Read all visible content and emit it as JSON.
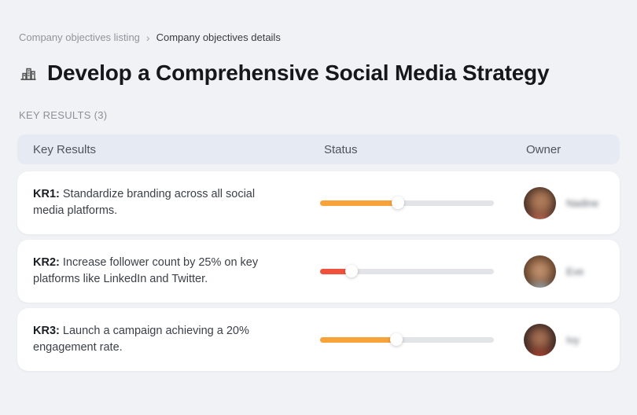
{
  "breadcrumb": {
    "separator": "›",
    "items": [
      {
        "label": "Company objectives listing"
      },
      {
        "label": "Company objectives details"
      }
    ]
  },
  "page": {
    "title": "Develop a Comprehensive Social Media Strategy",
    "title_icon": "building-skyline-icon",
    "section_label": "KEY RESULTS (3)"
  },
  "table": {
    "headers": {
      "key_results": "Key Results",
      "status": "Status",
      "owner": "Owner"
    },
    "rows": [
      {
        "kr_label": "KR1:",
        "kr_text": "Standardize branding across all social media platforms.",
        "progress_percent": 45,
        "progress_color": "#F8A33A",
        "owner": "Nadine"
      },
      {
        "kr_label": "KR2:",
        "kr_text": "Increase follower count by 25% on key platforms like LinkedIn and Twitter.",
        "progress_percent": 18,
        "progress_color": "#F0513C",
        "owner": "Eve"
      },
      {
        "kr_label": "KR3:",
        "kr_text": "Launch a campaign achieving a 20% engagement rate.",
        "progress_percent": 44,
        "progress_color": "#F8A33A",
        "owner": "Ivy"
      }
    ]
  },
  "colors": {
    "page_background": "#F1F2F5",
    "table_header_background": "#E6EAF2",
    "card_background": "#FFFFFF",
    "progress_track": "#E3E4E7",
    "progress_orange": "#F8A33A",
    "progress_red": "#F0513C"
  }
}
